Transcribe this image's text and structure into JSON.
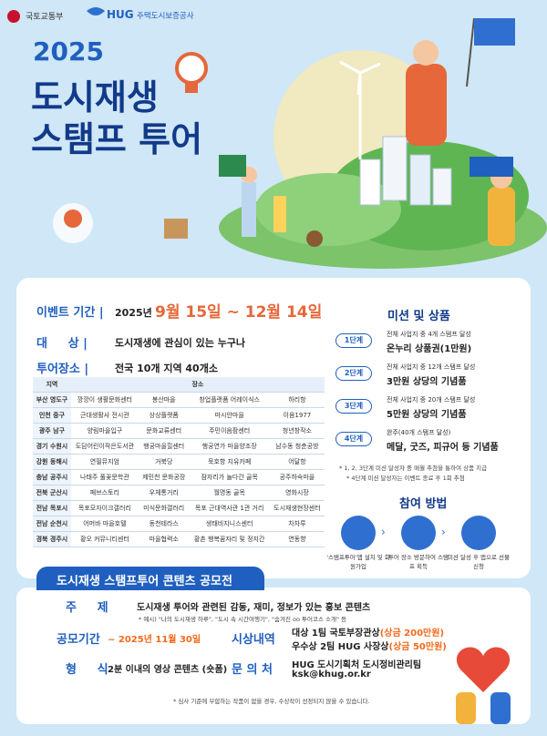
{
  "header": {
    "org1": "국토교통부",
    "org2_logo": "HUG",
    "org2": "주택도시보증공사"
  },
  "title": {
    "year": "2025",
    "line1": "도시재생",
    "line2": "스탬프 투어"
  },
  "event": {
    "period_label": "이벤트 기간 |",
    "period_year": "2025년",
    "period_dates": "9월 15일 ~ 12월 14일",
    "target_label": "대     상 |",
    "target": "도시재생에 관심이 있는 누구나",
    "place_label": "투어장소 |",
    "place": "전국 10개 지역 40개소"
  },
  "table": {
    "header": [
      "지역",
      "장소"
    ],
    "rows": [
      [
        "부산 영도구",
        "깡깡이 생활문화센터",
        "봉산마을",
        "창업플랫폼 어레이식스",
        "하리항"
      ],
      [
        "인천 중구",
        "근대생활사 전시관",
        "상상플랫폼",
        "마시안마을",
        "이음1977"
      ],
      [
        "광주 남구",
        "양림마을입구",
        "문화교류센터",
        "주민이음팜센터",
        "청년창작소"
      ],
      [
        "경기 수원시",
        "도담어린이작은도서관",
        "행궁마을힐센터",
        "행궁연가 마을양조장",
        "남수동 청춘공방"
      ],
      [
        "강원 동해시",
        "연필뮤지엄",
        "거북당",
        "묵호항 지유카페",
        "어달항"
      ],
      [
        "충남 공주시",
        "나태주 풀꽃문학관",
        "제민천 문화공장",
        "잠자리가 놀다간 골목",
        "공주하숙마을"
      ],
      [
        "전북 군산시",
        "페브스토리",
        "우체통거리",
        "월명동 골목",
        "영화시장"
      ],
      [
        "전남 목포시",
        "목포모자이크갤러리",
        "미식문화갤러리",
        "목포 근대역사관 1관 거리",
        "도시재생현장센터"
      ],
      [
        "전남 순천시",
        "어머바 마을호텔",
        "동천테라스",
        "생태비지니스센터",
        "차차루"
      ],
      [
        "경북 경주시",
        "황오 커뮤니티센터",
        "마을협력소",
        "황촌 행복꿈자리 및 정지간",
        "연동향"
      ]
    ]
  },
  "mission": {
    "title": "미션 및 상품",
    "stages": [
      {
        "step": "1단계",
        "desc": "전체 사업지 중 4개 스탬프 달성",
        "prize": "온누리 상품권(1만원)"
      },
      {
        "step": "2단계",
        "desc": "전체 사업지 중 12개 스탬프 달성",
        "prize": "3만원 상당의 기념품"
      },
      {
        "step": "3단계",
        "desc": "전체 사업지 중 20개 스탬프 달성",
        "prize": "5만원 상당의 기념품"
      },
      {
        "step": "4단계",
        "desc": "완주(40개 스탬프 달성)",
        "prize": "메달, 굿즈, 피규어 등 기념품"
      }
    ],
    "notes": [
      "* 1, 2, 3단계 미션 달성자 중 매월 추첨을 통하여 상품 지급",
      "* 4단계 미션 달성자는 이벤트 종료 후 1회 추첨"
    ]
  },
  "how": {
    "title": "참여 방법",
    "steps": [
      "'스탬프투어'앱 설치 및 회원가입",
      "투어 장소 방문하여 스탬프 획득",
      "미션 달성 후 앱으로 선물 신청"
    ]
  },
  "contest": {
    "title": "도시재생 스탬프투어 콘텐츠 공모전",
    "topic_label": "주     제",
    "topic": "도시재생 투어와 관련된 감동, 재미, 정보가 있는 홍보 콘텐츠",
    "topic_example": "* 예시) \"나의 도시재생 하루\", \"도시 속 시간여행기\", \"숨겨진 oo 투어코스 소개\" 등",
    "period_label": "공모기간",
    "period": "~ 2025년 11월 30일",
    "award_label": "시상내역",
    "awards": [
      {
        "name": "대상 1팀 국토부장관상",
        "prize": "(상금 200만원)"
      },
      {
        "name": "우수상 2팀 HUG 사장상",
        "prize": "(상금 50만원)"
      }
    ],
    "format_label": "형     식",
    "format": "2분 이내의 영상 콘텐츠 (숏폼)",
    "contact_label": "문 의 처",
    "contact_team": "HUG 도시기획처 도시정비관리팀",
    "contact_email": "ksk@khug.or.kr",
    "footnote": "* 심사 기준에 부합하는 작품이 없을 경우, 수상작이 선정되지 않을 수 있습니다."
  }
}
